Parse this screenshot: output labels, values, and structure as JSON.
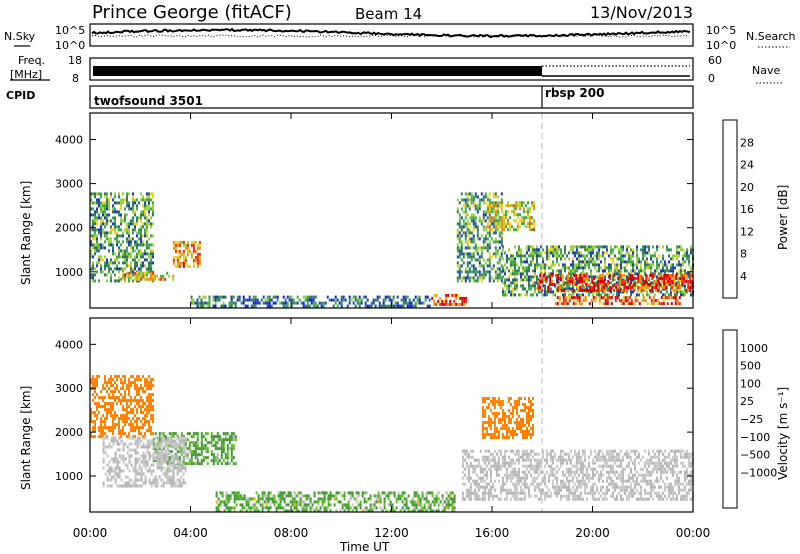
{
  "header": {
    "title": "Prince George (fitACF)",
    "beam": "Beam 14",
    "date": "13/Nov/2013"
  },
  "colors": {
    "power": [
      "#0b1ee6",
      "#1f3cb4",
      "#2f7a5c",
      "#3fa84a",
      "#9cd13a",
      "#f0d020",
      "#f49010",
      "#ee3010",
      "#d40000"
    ],
    "velocity": [
      "#ff0000",
      "#ff4000",
      "#ff8000",
      "#ffaa00",
      "#c8c8c8",
      "#b4b4b4",
      "#60c020",
      "#409830",
      "#1e64c8",
      "#1e32b4"
    ]
  },
  "noise_panel": {
    "left_label": "N.Sky",
    "left_ticks": [
      "10^5",
      "10^0"
    ],
    "right_ticks": [
      "10^5",
      "10^0"
    ],
    "right_label": "N.Search"
  },
  "freq_panel": {
    "left_label_1": "Freq.",
    "left_label_2": "[MHz]",
    "left_ticks": [
      "18",
      "8"
    ],
    "right_ticks": [
      "60",
      "0"
    ],
    "right_label": "Nave"
  },
  "cpid_panel": {
    "label": "CPID",
    "programs": [
      {
        "name": "twofsound 3501",
        "start_hour": 0
      },
      {
        "name": "rbsp 200",
        "start_hour": 18
      }
    ]
  },
  "chart_data": [
    {
      "type": "heatmap",
      "name": "power",
      "ylabel": "Slant Range [km]",
      "ylim": [
        180,
        4600
      ],
      "yticks": [
        "1000",
        "2000",
        "3000",
        "4000"
      ],
      "xlim": [
        0,
        24
      ],
      "colorbar": {
        "label": "Power [dB]",
        "ticks": [
          "4",
          "8",
          "12",
          "16",
          "20",
          "24",
          "28"
        ],
        "range": [
          0,
          32
        ]
      },
      "regions": [
        {
          "x0": 0.0,
          "x1": 2.5,
          "y0": 800,
          "y1": 2800,
          "value": 12
        },
        {
          "x0": 1.2,
          "x1": 3.3,
          "y0": 800,
          "y1": 1000,
          "value": 20
        },
        {
          "x0": 3.3,
          "x1": 4.4,
          "y0": 1100,
          "y1": 1700,
          "value": 22
        },
        {
          "x0": 4.0,
          "x1": 5.6,
          "y0": 230,
          "y1": 460,
          "value": 10
        },
        {
          "x0": 5.6,
          "x1": 13.5,
          "y0": 230,
          "y1": 460,
          "value": 8
        },
        {
          "x0": 13.5,
          "x1": 15.0,
          "y0": 250,
          "y1": 500,
          "value": 27
        },
        {
          "x0": 14.6,
          "x1": 16.4,
          "y0": 800,
          "y1": 2800,
          "value": 12
        },
        {
          "x0": 15.8,
          "x1": 17.7,
          "y0": 1950,
          "y1": 2600,
          "value": 18
        },
        {
          "x0": 16.4,
          "x1": 24.0,
          "y0": 450,
          "y1": 1600,
          "value": 12
        },
        {
          "x0": 17.8,
          "x1": 24.0,
          "y0": 600,
          "y1": 950,
          "value": 28
        },
        {
          "x0": 18.5,
          "x1": 23.5,
          "y0": 260,
          "y1": 450,
          "value": 26
        }
      ]
    },
    {
      "type": "heatmap",
      "name": "velocity",
      "ylabel": "Slant Range [km]",
      "ylim": [
        180,
        4600
      ],
      "yticks": [
        "1000",
        "2000",
        "3000",
        "4000"
      ],
      "xlim": [
        0,
        24
      ],
      "xticks": [
        "00:00",
        "04:00",
        "08:00",
        "12:00",
        "16:00",
        "20:00",
        "00:00"
      ],
      "xlabel": "Time UT",
      "colorbar": {
        "label": "Velocity [m s⁻¹]",
        "ticks": [
          "1000",
          "500",
          "100",
          "25",
          "−25",
          "−100",
          "−500",
          "−1000"
        ]
      },
      "regions": [
        {
          "x0": 0.0,
          "x1": 2.5,
          "y0": 1900,
          "y1": 3300,
          "value": -300
        },
        {
          "x0": 2.5,
          "x1": 5.8,
          "y0": 1300,
          "y1": 2000,
          "value": 150
        },
        {
          "x0": 0.5,
          "x1": 3.8,
          "y0": 800,
          "y1": 1900,
          "value": 0
        },
        {
          "x0": 5.0,
          "x1": 14.5,
          "y0": 230,
          "y1": 650,
          "value": 120
        },
        {
          "x0": 14.8,
          "x1": 24.0,
          "y0": 500,
          "y1": 1600,
          "value": 0
        },
        {
          "x0": 15.6,
          "x1": 17.6,
          "y0": 1900,
          "y1": 2800,
          "value": -300
        }
      ]
    }
  ]
}
